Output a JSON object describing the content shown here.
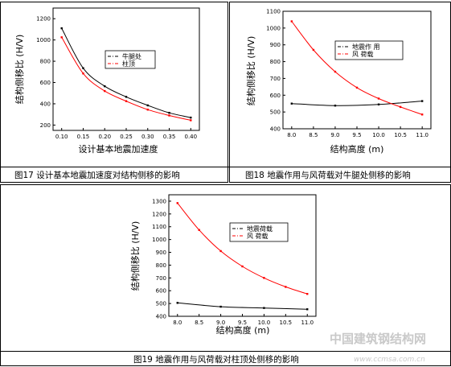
{
  "captions": [
    "图17 设计基本地震加速度对结构侧移的影响",
    "图18 地震作用与风荷载对牛腿处侧移的影响",
    "图19 地震作用与风荷载对柱顶处侧移的影响"
  ],
  "watermark": {
    "text": "中国建筑钢结构网",
    "url": "www.ccmsa.com.cn"
  },
  "colors": {
    "black_series": "#000000",
    "red_series": "#ff0000"
  },
  "chart_data": [
    {
      "type": "line",
      "title": "",
      "xlabel": "设计基本地震加速度",
      "ylabel": "结构侧移比 (H/V)",
      "xlim": [
        0.08,
        0.42
      ],
      "ylim": [
        150,
        1300
      ],
      "xticks": [
        0.1,
        0.15,
        0.2,
        0.25,
        0.3,
        0.35,
        0.4
      ],
      "xtick_labels": [
        "0.10",
        "0.15",
        "0.20",
        "0.25",
        "0.30",
        "0.35",
        "0.40"
      ],
      "yticks": [
        200,
        400,
        600,
        800,
        1000,
        1200
      ],
      "ytick_labels": [
        "200",
        "400",
        "600",
        "800",
        "1000",
        "1200"
      ],
      "legend_position": "center-right",
      "series": [
        {
          "name": "牛腿处",
          "style": "black-dashdot",
          "x": [
            0.1,
            0.15,
            0.2,
            0.25,
            0.3,
            0.35,
            0.4
          ],
          "y": [
            1110,
            735,
            565,
            465,
            385,
            315,
            270
          ]
        },
        {
          "name": "柱顶",
          "style": "red-dashdot",
          "x": [
            0.1,
            0.15,
            0.2,
            0.25,
            0.3,
            0.35,
            0.4
          ],
          "y": [
            1025,
            685,
            520,
            425,
            345,
            290,
            245
          ]
        }
      ]
    },
    {
      "type": "line",
      "title": "",
      "xlabel": "结构高度 (m)",
      "ylabel": "结构侧移比 (H/V)",
      "xlim": [
        7.8,
        11.2
      ],
      "ylim": [
        400,
        1100
      ],
      "xticks": [
        8.0,
        8.5,
        9.0,
        9.5,
        10.0,
        10.5,
        11.0
      ],
      "xtick_labels": [
        "8.0",
        "8.5",
        "9.0",
        "9.5",
        "10.0",
        "10.5",
        "11.0"
      ],
      "yticks": [
        400,
        500,
        600,
        700,
        800,
        900,
        1000,
        1100
      ],
      "ytick_labels": [
        "400",
        "500",
        "600",
        "700",
        "800",
        "900",
        "1000",
        "1100"
      ],
      "legend_position": "top-right",
      "series": [
        {
          "name": "地震作 用",
          "style": "black-dashdot",
          "x": [
            8.0,
            9.0,
            10.0,
            11.0
          ],
          "y": [
            550,
            538,
            545,
            565
          ]
        },
        {
          "name": "风 荷载",
          "style": "red-dashdot",
          "x": [
            8.0,
            8.5,
            9.0,
            9.5,
            10.0,
            10.5,
            11.0
          ],
          "y": [
            1040,
            870,
            740,
            645,
            580,
            530,
            485
          ]
        }
      ]
    },
    {
      "type": "line",
      "title": "",
      "xlabel": "结构高度 (m)",
      "ylabel": "结构侧移比 (H/V)",
      "xlim": [
        7.8,
        11.2
      ],
      "ylim": [
        400,
        1350
      ],
      "xticks": [
        8.0,
        8.5,
        9.0,
        9.5,
        10.0,
        10.5,
        11.0
      ],
      "xtick_labels": [
        "8.0",
        "8.5",
        "9.0",
        "9.5",
        "10.0",
        "10.5",
        "11.0"
      ],
      "yticks": [
        400,
        500,
        600,
        700,
        800,
        900,
        1000,
        1100,
        1200,
        1300
      ],
      "ytick_labels": [
        "400",
        "500",
        "600",
        "700",
        "800",
        "900",
        "1000",
        "1100",
        "1200",
        "1300"
      ],
      "legend_position": "top-right",
      "series": [
        {
          "name": "地震荷载",
          "style": "black-dashdot",
          "x": [
            8.0,
            9.0,
            10.0,
            11.0
          ],
          "y": [
            505,
            475,
            465,
            455
          ]
        },
        {
          "name": "风 荷载",
          "style": "red-dashdot",
          "x": [
            8.0,
            8.5,
            9.0,
            9.5,
            10.0,
            10.5,
            11.0
          ],
          "y": [
            1285,
            1075,
            910,
            790,
            700,
            630,
            575
          ]
        }
      ]
    }
  ]
}
